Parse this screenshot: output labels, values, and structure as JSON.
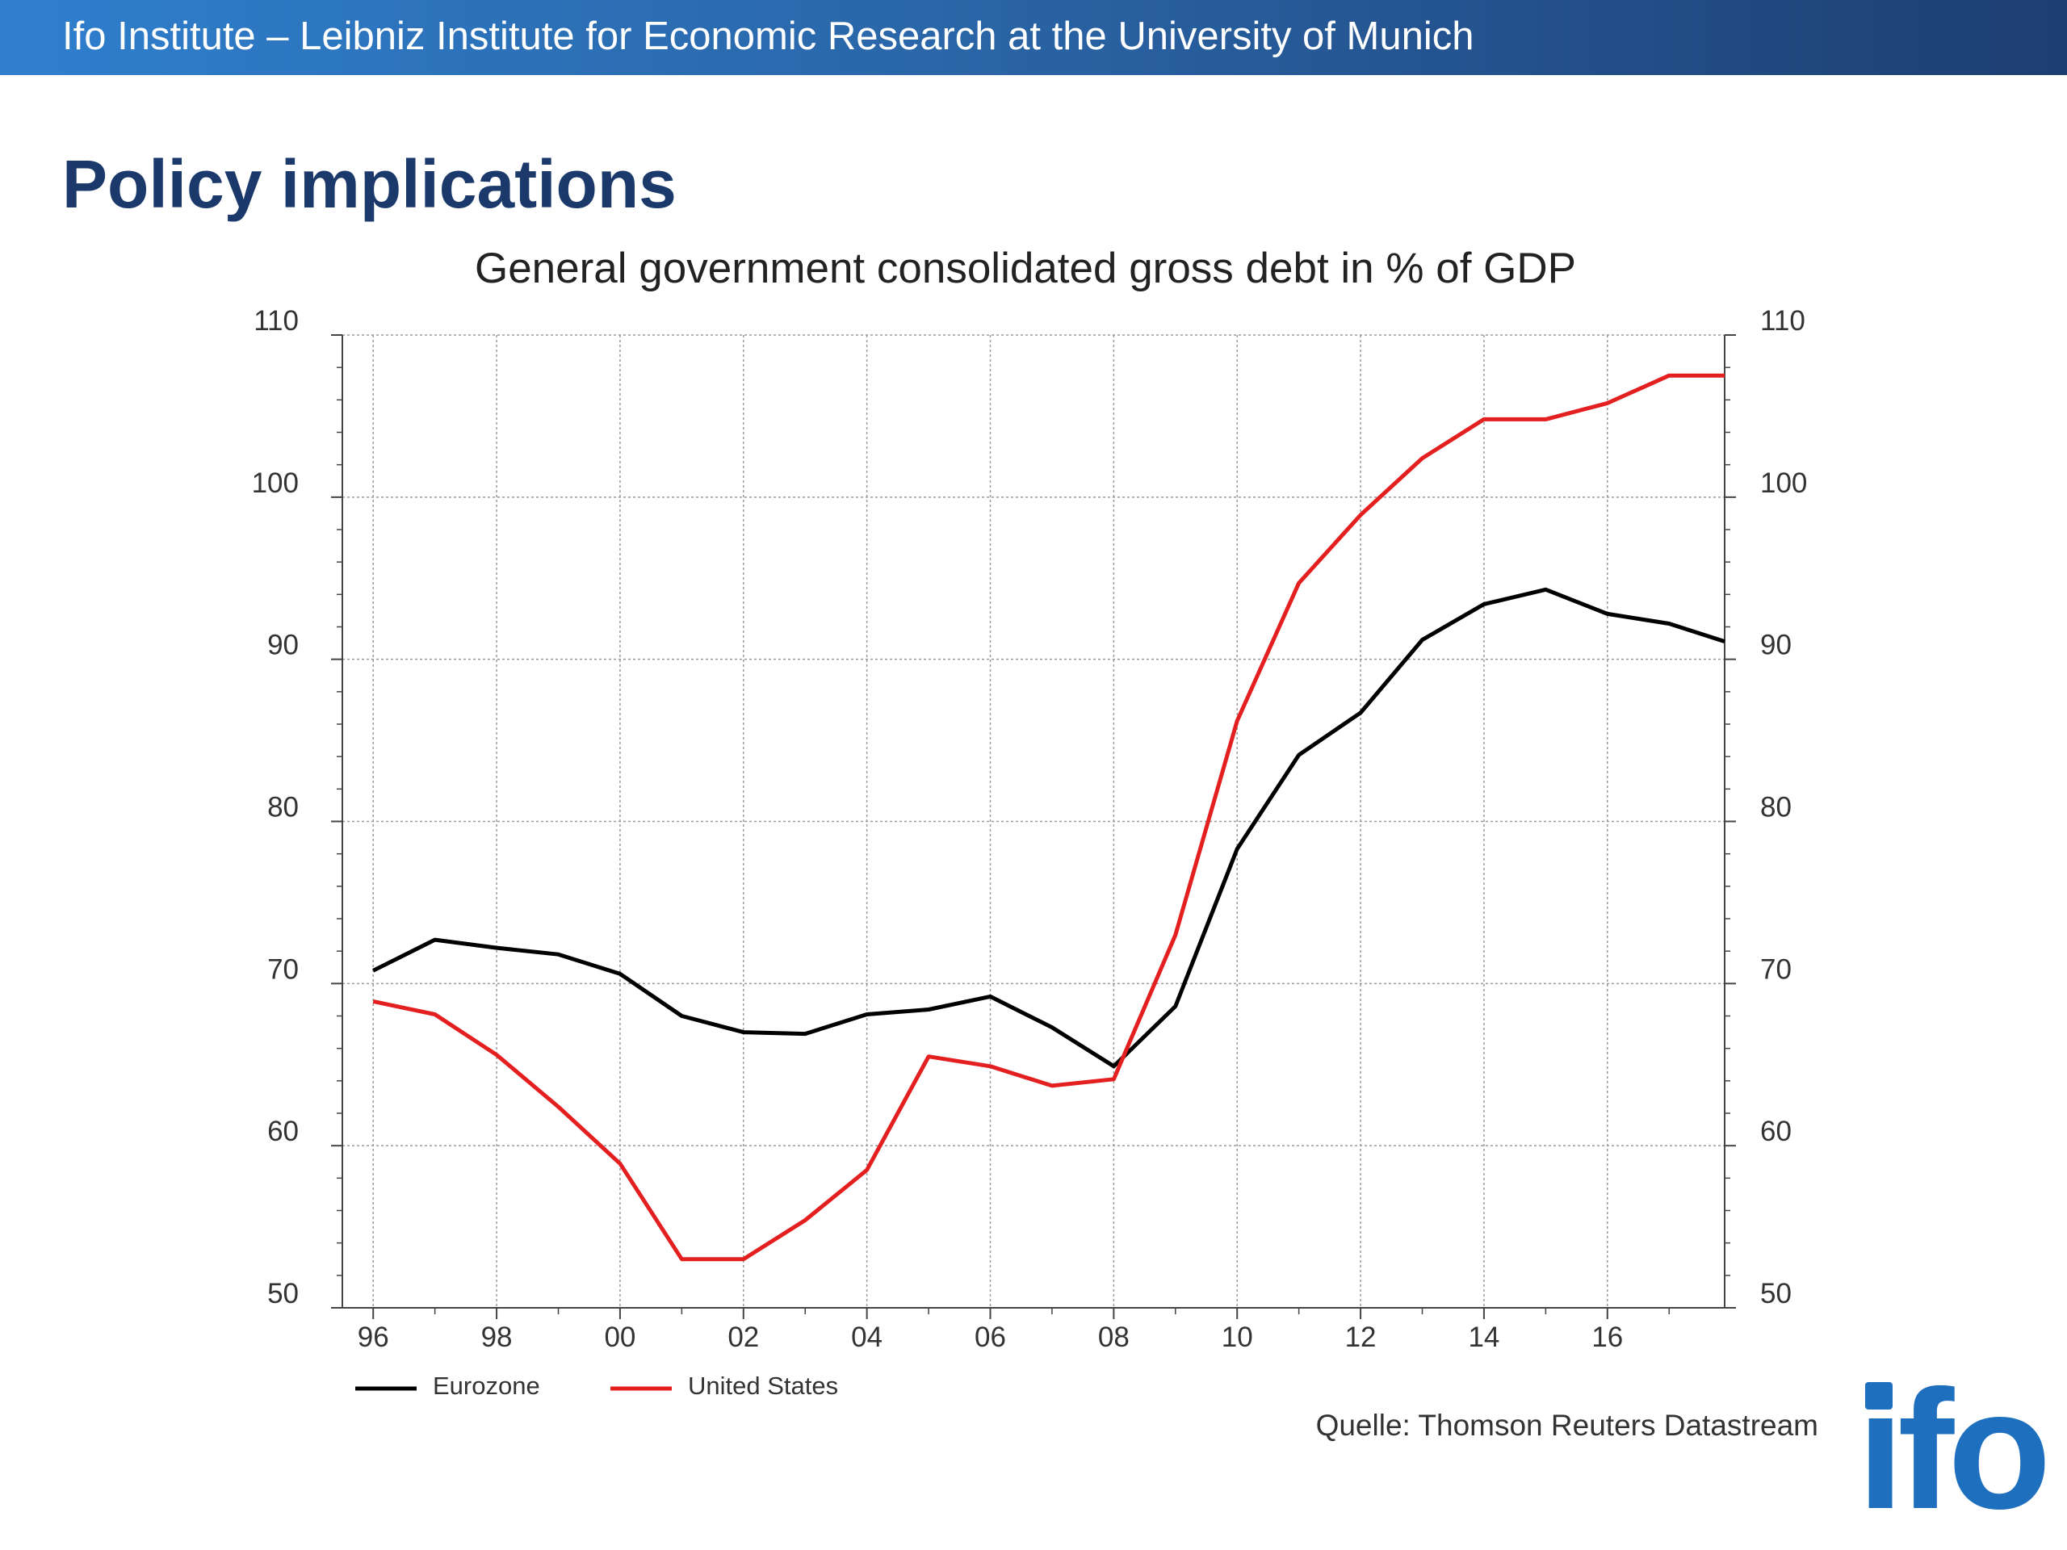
{
  "header": {
    "institute": "Ifo Institute – Leibniz Institute for Economic Research at the University of Munich"
  },
  "slide": {
    "title": "Policy implications",
    "source": "Quelle: Thomson Reuters Datastream"
  },
  "logo": {
    "text": "ifo"
  },
  "colors": {
    "brand_blue": "#1b3a6b",
    "logo_blue": "#1f6fbf",
    "eurozone": "#000000",
    "united_states": "#e41f1f"
  },
  "chart_data": {
    "type": "line",
    "title": "General government consolidated gross debt in % of GDP",
    "xlabel": "",
    "ylabel": "",
    "ylim": [
      50,
      110
    ],
    "xlim": [
      1995.5,
      2017.9
    ],
    "y_ticks": [
      50,
      60,
      70,
      80,
      90,
      100,
      110
    ],
    "x_ticks": [
      {
        "year": 1996,
        "label": "96"
      },
      {
        "year": 1998,
        "label": "98"
      },
      {
        "year": 2000,
        "label": "00"
      },
      {
        "year": 2002,
        "label": "02"
      },
      {
        "year": 2004,
        "label": "04"
      },
      {
        "year": 2006,
        "label": "06"
      },
      {
        "year": 2008,
        "label": "08"
      },
      {
        "year": 2010,
        "label": "10"
      },
      {
        "year": 2012,
        "label": "12"
      },
      {
        "year": 2014,
        "label": "14"
      },
      {
        "year": 2016,
        "label": "16"
      }
    ],
    "dual_y_axis": true,
    "grid": true,
    "legend_position": "bottom-left",
    "series": [
      {
        "name": "Eurozone",
        "color": "#000000",
        "x": [
          1996,
          1997,
          1998,
          1999,
          2000,
          2001,
          2002,
          2003,
          2004,
          2005,
          2006,
          2007,
          2008,
          2009,
          2010,
          2011,
          2012,
          2013,
          2014,
          2015,
          2016,
          2017,
          2017.9
        ],
        "values": [
          70.8,
          72.7,
          72.2,
          71.8,
          70.6,
          68.0,
          67.0,
          66.9,
          68.1,
          68.4,
          69.2,
          67.3,
          64.9,
          68.6,
          78.3,
          84.1,
          86.7,
          91.2,
          93.4,
          94.3,
          92.8,
          92.2,
          91.1
        ]
      },
      {
        "name": "United States",
        "color": "#e41f1f",
        "x": [
          1996,
          1997,
          1998,
          1999,
          2000,
          2001,
          2002,
          2003,
          2004,
          2005,
          2006,
          2007,
          2008,
          2009,
          2010,
          2011,
          2012,
          2013,
          2014,
          2015,
          2016,
          2017,
          2017.9
        ],
        "values": [
          68.9,
          68.1,
          65.6,
          62.4,
          58.9,
          53.0,
          53.0,
          55.4,
          58.5,
          65.5,
          64.9,
          63.7,
          64.1,
          73.0,
          86.2,
          94.7,
          98.9,
          102.4,
          104.8,
          104.8,
          105.8,
          107.5,
          107.5
        ]
      }
    ]
  }
}
